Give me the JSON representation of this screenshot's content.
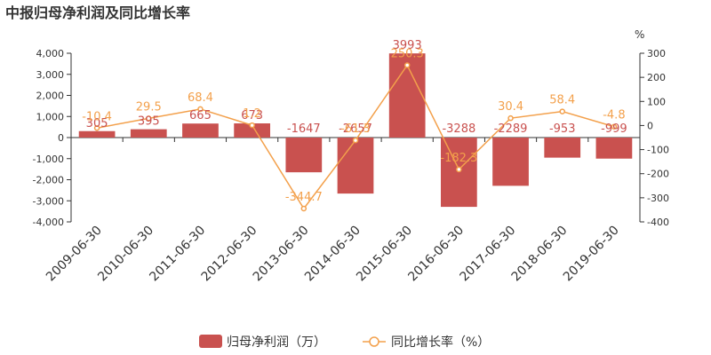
{
  "chart_data": {
    "type": "bar+line",
    "title": "中报归母净利润及同比增长率",
    "categories": [
      "2009-06-30",
      "2010-06-30",
      "2011-06-30",
      "2012-06-30",
      "2013-06-30",
      "2014-06-30",
      "2015-06-30",
      "2016-06-30",
      "2017-06-30",
      "2018-06-30",
      "2019-06-30"
    ],
    "series": [
      {
        "name": "归母净利润（万）",
        "type": "bar",
        "axis": "left",
        "values": [
          305,
          395,
          665,
          673,
          -1647,
          -2657,
          3993,
          -3288,
          -2289,
          -953,
          -999
        ],
        "labels": [
          "305",
          "395",
          "665",
          "673",
          "-1647",
          "-2657",
          "3993",
          "-3288",
          "-2289",
          "-953",
          "-999"
        ]
      },
      {
        "name": "同比增长率（%）",
        "type": "line",
        "axis": "right",
        "values": [
          -10.4,
          29.5,
          68.4,
          1.2,
          -344.7,
          -61.3,
          250.3,
          -182.3,
          30.4,
          58.4,
          -4.8
        ],
        "labels": [
          "-10.4",
          "29.5",
          "68.4",
          "1.2",
          "-344.7",
          "-61.3",
          "250.3",
          "-182.3",
          "30.4",
          "58.4",
          "-4.8"
        ]
      }
    ],
    "y_left": {
      "min": -4000,
      "max": 4000,
      "ticks": [
        4000,
        3000,
        2000,
        1000,
        0,
        -1000,
        -2000,
        -3000,
        -4000
      ],
      "tick_labels": [
        "4,000",
        "3,000",
        "2,000",
        "1,000",
        "0",
        "-1,000",
        "-2,000",
        "-3,000",
        "-4,000"
      ]
    },
    "y_right": {
      "min": -400,
      "max": 300,
      "unit": "%",
      "ticks": [
        300,
        200,
        100,
        0,
        -100,
        -200,
        -300,
        -400
      ],
      "tick_labels": [
        "300",
        "200",
        "100",
        "0",
        "-100",
        "-200",
        "-300",
        "-400"
      ]
    },
    "legend": {
      "position": "bottom-center",
      "items": [
        "归母净利润（万）",
        "同比增长率（%）"
      ]
    },
    "grid": false,
    "colors": {
      "bar": "#c9514f",
      "line": "#f3a04b",
      "axis": "#333333"
    }
  }
}
